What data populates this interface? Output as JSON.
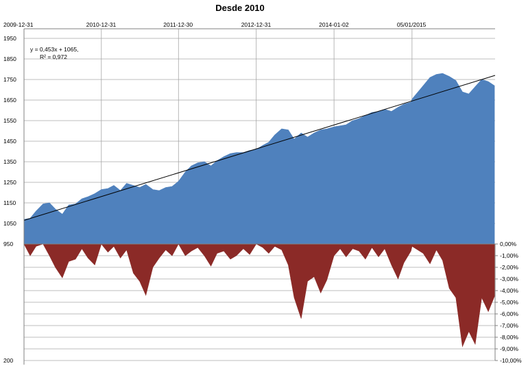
{
  "chart_data": {
    "type": "area",
    "title": "Desde 2010",
    "xlabel": "",
    "ylabel": "",
    "x_top_tick_labels": [
      "2009-12-31",
      "2010-12-31",
      "2011-12-30",
      "2012-12-31",
      "2014-01-02",
      "05/01/2015"
    ],
    "xlim": [
      "2009-12-31",
      "2016-02-01"
    ],
    "left_axis": {
      "ylim": [
        200,
        1950
      ],
      "tick_labels": [
        "200",
        "950",
        "1050",
        "1150",
        "1250",
        "1350",
        "1450",
        "1550",
        "1650",
        "1750",
        "1850",
        "1950"
      ],
      "tick_values": [
        200,
        950,
        1050,
        1150,
        1250,
        1350,
        1450,
        1550,
        1650,
        1750,
        1850,
        1950
      ]
    },
    "right_axis": {
      "ylim": [
        -10,
        0
      ],
      "unit": "%",
      "tick_labels": [
        "0,00%",
        "-1,00%",
        "-2,00%",
        "-3,00%",
        "-4,00%",
        "-5,00%",
        "-6,00%",
        "-7,00%",
        "-8,00%",
        "-9,00%",
        "-10,00%"
      ],
      "tick_values": [
        0,
        -1,
        -2,
        -3,
        -4,
        -5,
        -6,
        -7,
        -8,
        -9,
        -10
      ]
    },
    "grid": true,
    "series": [
      {
        "role": "price",
        "axis": "left",
        "color": "#4f81bd",
        "points": [
          [
            "2009-12-31",
            1070
          ],
          [
            "2010-01-29",
            1075
          ],
          [
            "2010-02-26",
            1110
          ],
          [
            "2010-03-31",
            1145
          ],
          [
            "2010-04-30",
            1150
          ],
          [
            "2010-05-28",
            1120
          ],
          [
            "2010-06-30",
            1095
          ],
          [
            "2010-07-30",
            1140
          ],
          [
            "2010-08-31",
            1145
          ],
          [
            "2010-09-30",
            1170
          ],
          [
            "2010-10-29",
            1180
          ],
          [
            "2010-11-30",
            1195
          ],
          [
            "2010-12-31",
            1215
          ],
          [
            "2011-01-31",
            1220
          ],
          [
            "2011-02-28",
            1235
          ],
          [
            "2011-03-31",
            1210
          ],
          [
            "2011-04-29",
            1245
          ],
          [
            "2011-05-31",
            1235
          ],
          [
            "2011-06-30",
            1225
          ],
          [
            "2011-07-29",
            1240
          ],
          [
            "2011-08-31",
            1215
          ],
          [
            "2011-09-30",
            1210
          ],
          [
            "2011-10-31",
            1225
          ],
          [
            "2011-11-30",
            1230
          ],
          [
            "2011-12-30",
            1255
          ],
          [
            "2012-01-31",
            1300
          ],
          [
            "2012-02-29",
            1330
          ],
          [
            "2012-03-30",
            1345
          ],
          [
            "2012-04-30",
            1350
          ],
          [
            "2012-05-31",
            1330
          ],
          [
            "2012-06-29",
            1355
          ],
          [
            "2012-07-31",
            1375
          ],
          [
            "2012-08-31",
            1390
          ],
          [
            "2012-09-28",
            1395
          ],
          [
            "2012-10-31",
            1395
          ],
          [
            "2012-11-30",
            1405
          ],
          [
            "2012-12-31",
            1410
          ],
          [
            "2013-01-31",
            1430
          ],
          [
            "2013-02-28",
            1445
          ],
          [
            "2013-03-28",
            1480
          ],
          [
            "2013-04-30",
            1510
          ],
          [
            "2013-05-31",
            1505
          ],
          [
            "2013-06-28",
            1460
          ],
          [
            "2013-07-31",
            1490
          ],
          [
            "2013-08-30",
            1470
          ],
          [
            "2013-09-30",
            1490
          ],
          [
            "2013-10-31",
            1505
          ],
          [
            "2013-11-29",
            1510
          ],
          [
            "2014-01-02",
            1520
          ],
          [
            "2014-01-31",
            1525
          ],
          [
            "2014-02-28",
            1530
          ],
          [
            "2014-03-31",
            1550
          ],
          [
            "2014-04-30",
            1560
          ],
          [
            "2014-05-30",
            1575
          ],
          [
            "2014-06-30",
            1590
          ],
          [
            "2014-07-31",
            1595
          ],
          [
            "2014-08-29",
            1605
          ],
          [
            "2014-09-30",
            1595
          ],
          [
            "2014-10-31",
            1615
          ],
          [
            "2014-11-28",
            1630
          ],
          [
            "2014-12-31",
            1640
          ],
          [
            "2015-01-05",
            1655
          ],
          [
            "2015-02-27",
            1720
          ],
          [
            "2015-03-31",
            1760
          ],
          [
            "2015-04-30",
            1775
          ],
          [
            "2015-05-29",
            1780
          ],
          [
            "2015-06-30",
            1765
          ],
          [
            "2015-07-31",
            1745
          ],
          [
            "2015-08-31",
            1690
          ],
          [
            "2015-09-30",
            1680
          ],
          [
            "2015-10-30",
            1715
          ],
          [
            "2015-11-30",
            1750
          ],
          [
            "2015-12-31",
            1740
          ],
          [
            "2016-01-29",
            1720
          ]
        ]
      },
      {
        "role": "drawdown",
        "axis": "right",
        "unit": "%",
        "color": "#8b2a27",
        "points": [
          [
            "2009-12-31",
            0
          ],
          [
            "2010-01-29",
            -1.0
          ],
          [
            "2010-02-26",
            -0.2
          ],
          [
            "2010-03-31",
            0
          ],
          [
            "2010-04-30",
            -1.0
          ],
          [
            "2010-05-28",
            -2.0
          ],
          [
            "2010-06-30",
            -2.9
          ],
          [
            "2010-07-30",
            -1.5
          ],
          [
            "2010-08-31",
            -1.3
          ],
          [
            "2010-09-30",
            -0.4
          ],
          [
            "2010-10-29",
            -1.2
          ],
          [
            "2010-11-30",
            -1.8
          ],
          [
            "2010-12-31",
            0
          ],
          [
            "2011-01-31",
            -0.7
          ],
          [
            "2011-02-28",
            -0.2
          ],
          [
            "2011-03-31",
            -1.2
          ],
          [
            "2011-04-29",
            -0.5
          ],
          [
            "2011-05-31",
            -2.5
          ],
          [
            "2011-06-30",
            -3.2
          ],
          [
            "2011-07-29",
            -4.4
          ],
          [
            "2011-08-31",
            -2.0
          ],
          [
            "2011-09-30",
            -1.2
          ],
          [
            "2011-10-31",
            -0.5
          ],
          [
            "2011-11-30",
            -1.0
          ],
          [
            "2011-12-30",
            0
          ],
          [
            "2012-01-31",
            -1.0
          ],
          [
            "2012-02-29",
            -0.6
          ],
          [
            "2012-03-30",
            -0.3
          ],
          [
            "2012-04-30",
            -1.0
          ],
          [
            "2012-05-31",
            -1.9
          ],
          [
            "2012-06-29",
            -0.8
          ],
          [
            "2012-07-31",
            -0.6
          ],
          [
            "2012-08-31",
            -1.3
          ],
          [
            "2012-09-28",
            -1.0
          ],
          [
            "2012-10-31",
            -0.4
          ],
          [
            "2012-11-30",
            -0.9
          ],
          [
            "2012-12-31",
            0
          ],
          [
            "2013-01-31",
            -0.3
          ],
          [
            "2013-02-28",
            -0.8
          ],
          [
            "2013-03-28",
            -0.2
          ],
          [
            "2013-04-30",
            -0.5
          ],
          [
            "2013-05-31",
            -1.8
          ],
          [
            "2013-06-28",
            -4.6
          ],
          [
            "2013-07-31",
            -6.4
          ],
          [
            "2013-08-30",
            -3.2
          ],
          [
            "2013-09-30",
            -2.8
          ],
          [
            "2013-10-31",
            -4.2
          ],
          [
            "2013-11-29",
            -3.1
          ],
          [
            "2014-01-02",
            -1.0
          ],
          [
            "2014-01-31",
            -0.4
          ],
          [
            "2014-02-28",
            -1.1
          ],
          [
            "2014-03-31",
            -0.4
          ],
          [
            "2014-04-30",
            -0.6
          ],
          [
            "2014-05-30",
            -1.3
          ],
          [
            "2014-06-30",
            -0.3
          ],
          [
            "2014-07-31",
            -1.1
          ],
          [
            "2014-08-29",
            -0.4
          ],
          [
            "2014-09-30",
            -1.8
          ],
          [
            "2014-10-31",
            -3.0
          ],
          [
            "2014-11-28",
            -1.6
          ],
          [
            "2014-12-31",
            -0.6
          ],
          [
            "2015-01-05",
            -0.2
          ],
          [
            "2015-02-27",
            -0.8
          ],
          [
            "2015-03-31",
            -1.7
          ],
          [
            "2015-04-30",
            -0.5
          ],
          [
            "2015-05-29",
            -1.4
          ],
          [
            "2015-06-30",
            -3.8
          ],
          [
            "2015-07-31",
            -4.6
          ],
          [
            "2015-08-31",
            -8.8
          ],
          [
            "2015-09-30",
            -7.5
          ],
          [
            "2015-10-30",
            -8.6
          ],
          [
            "2015-11-30",
            -4.6
          ],
          [
            "2015-12-31",
            -5.8
          ],
          [
            "2016-01-29",
            -4.5
          ]
        ]
      }
    ],
    "trendline": {
      "type": "linear",
      "color": "#000000",
      "equation": "y = 0,453x + 1065,",
      "r_squared": "R² = 0,972",
      "start": [
        "2009-12-31",
        1065
      ],
      "end": [
        "2016-02-01",
        1770
      ]
    }
  }
}
